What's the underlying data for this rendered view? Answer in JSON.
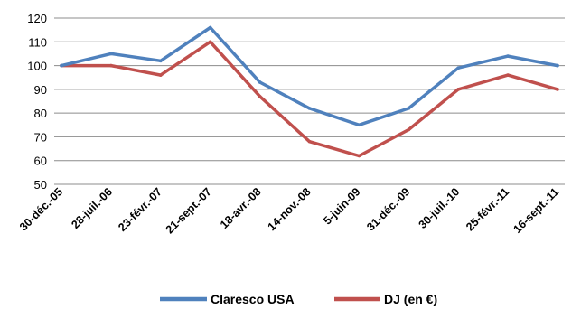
{
  "chart_data": {
    "type": "line",
    "title": "",
    "xlabel": "",
    "ylabel": "",
    "ylim": [
      50,
      120
    ],
    "yticks": [
      50,
      60,
      70,
      80,
      90,
      100,
      110,
      120
    ],
    "grid": "horizontal",
    "legend_position": "bottom",
    "x_tick_labels": [
      "30-déc.-05",
      "28-juil.-06",
      "23-févr.-07",
      "21-sept.-07",
      "18-avr.-08",
      "14-nov.-08",
      "5-juin-09",
      "31-déc.-09",
      "30-juil.-10",
      "25-févr.-11",
      "16-sept.-11"
    ],
    "x": [
      "30-déc.-05",
      "28-juil.-06",
      "23-févr.-07",
      "21-sept.-07",
      "18-avr.-08",
      "14-nov.-08",
      "5-juin-09",
      "31-déc.-09",
      "30-juil.-10",
      "25-févr.-11",
      "16-sept.-11"
    ],
    "series": [
      {
        "name": "Claresco USA",
        "color": "#4f81bd",
        "values": [
          100,
          105,
          102,
          116,
          93,
          82,
          75,
          82,
          99,
          104,
          100
        ]
      },
      {
        "name": "DJ (en €)",
        "color": "#c0504d",
        "values": [
          100,
          100,
          96,
          110,
          87,
          68,
          62,
          73,
          90,
          96,
          90
        ]
      }
    ]
  }
}
